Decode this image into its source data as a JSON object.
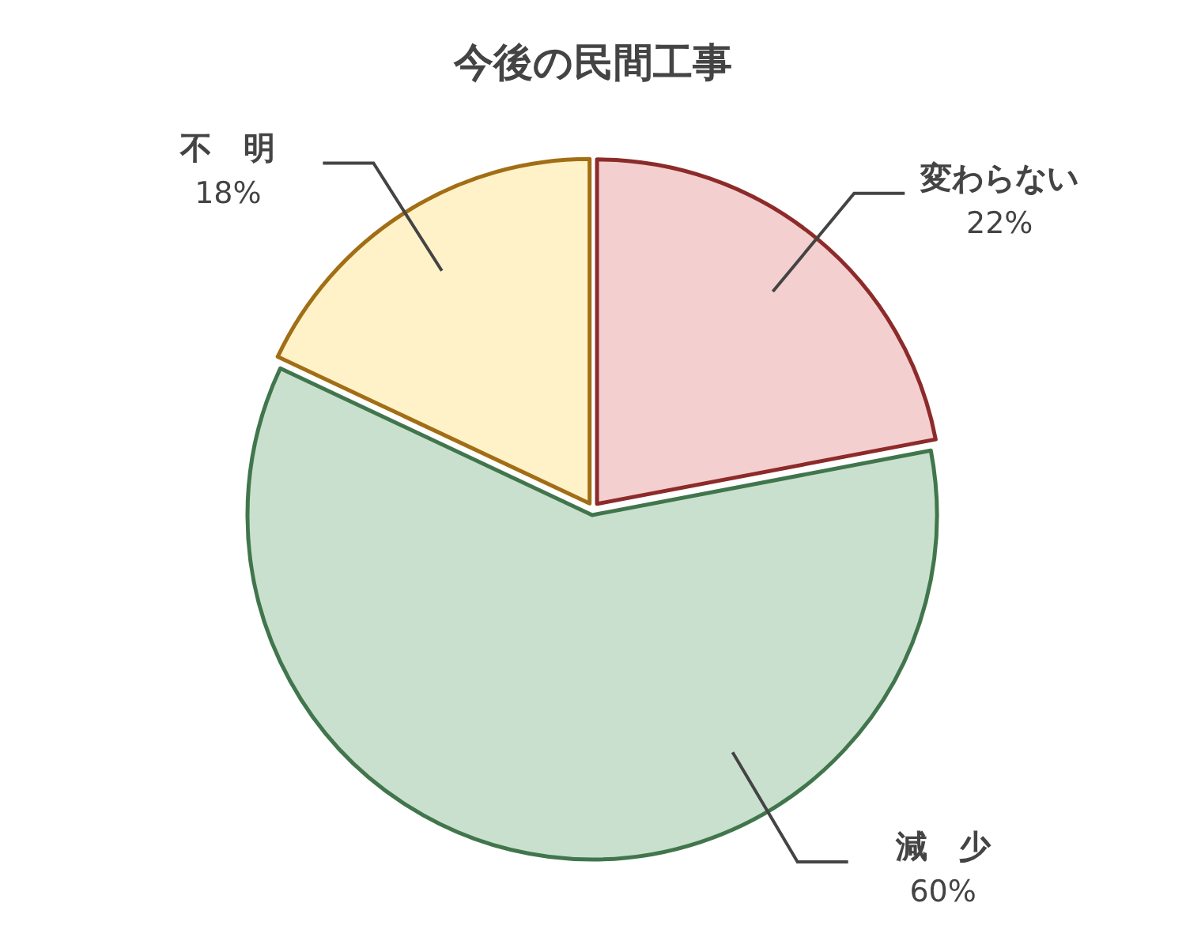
{
  "chart_data": {
    "type": "pie",
    "title": "今後の民間工事",
    "categories": [
      "変わらない",
      "減　少",
      "不　明"
    ],
    "values": [
      22,
      60,
      18
    ],
    "colors": [
      "#f4cfcf",
      "#c9e0ce",
      "#fff2c8"
    ],
    "value_labels": [
      "22%",
      "60%",
      "18%"
    ],
    "legend": false
  }
}
